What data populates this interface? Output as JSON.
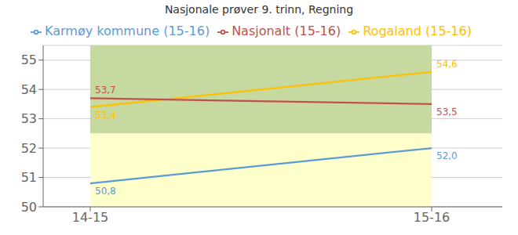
{
  "chart_data": {
    "type": "line",
    "title": "Nasjonale prøver 9. trinn, Regning",
    "categories": [
      "14-15",
      "15-16"
    ],
    "series": [
      {
        "name": "Karmøy kommune (15-16)",
        "color": "#5B9BD5",
        "values": [
          50.8,
          52.0
        ],
        "value_labels": [
          "50,8",
          "52,0"
        ]
      },
      {
        "name": "Rogaland (15-16)",
        "color": "#FFC000",
        "values": [
          53.4,
          54.6
        ],
        "value_labels": [
          "53,4",
          "54,6"
        ]
      },
      {
        "name": "Nasjonalt (15-16)",
        "color": "#C0504D",
        "values": [
          53.7,
          53.5
        ],
        "value_labels": [
          "53,7",
          "53,5"
        ]
      }
    ],
    "ylim": [
      50,
      55.5
    ],
    "yticks": [
      50,
      51,
      52,
      53,
      54,
      55
    ],
    "bands": [
      {
        "min": 50.0,
        "max": 52.5,
        "color": "#FFFFCC"
      },
      {
        "min": 52.5,
        "max": 55.5,
        "color": "#C6D9A0"
      }
    ],
    "grid": true,
    "legend": "top",
    "data_labels": true
  }
}
